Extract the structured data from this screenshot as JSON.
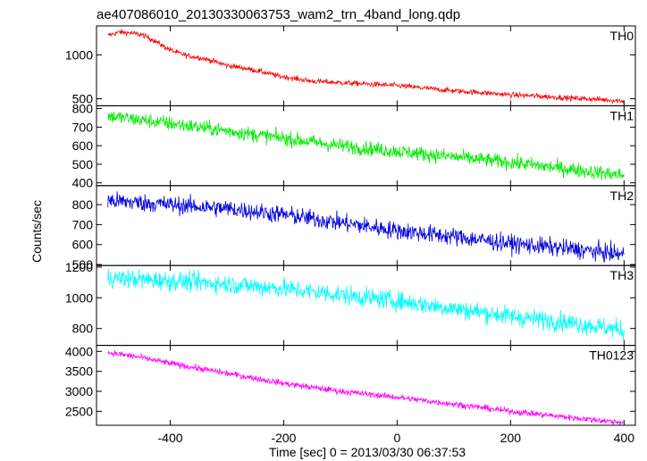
{
  "title": "ae407086010_20130330063753_wam2_trn_4band_long.qdp",
  "xlabel": "Time [sec] 0 = 2013/03/30 06:37:53",
  "ylabel": "Counts/sec",
  "chart_data": {
    "type": "line",
    "title": "ae407086010_20130330063753_wam2_trn_4band_long.qdp",
    "xlabel": "Time [sec] 0 = 2013/03/30 06:37:53",
    "ylabel": "Counts/sec",
    "xlim": [
      -530,
      420
    ],
    "xticks": [
      -400,
      -200,
      0,
      200,
      400
    ],
    "x_range": [
      -510,
      400
    ],
    "panels": [
      {
        "name": "TH0",
        "color": "#ff0000",
        "ylim": [
          420,
          1330
        ],
        "yticks": [
          500,
          1000
        ],
        "noise": 22,
        "x": [
          -510,
          -490,
          -470,
          -450,
          -430,
          -410,
          -390,
          -370,
          -350,
          -330,
          -300,
          -270,
          -240,
          -210,
          -180,
          -150,
          -120,
          -90,
          -60,
          -30,
          0,
          50,
          100,
          150,
          200,
          250,
          300,
          350,
          400
        ],
        "y": [
          1220,
          1260,
          1250,
          1230,
          1170,
          1090,
          1030,
          990,
          970,
          940,
          880,
          850,
          810,
          760,
          730,
          700,
          690,
          680,
          670,
          660,
          650,
          620,
          590,
          570,
          545,
          530,
          510,
          495,
          475
        ]
      },
      {
        "name": "TH1",
        "color": "#00ee00",
        "ylim": [
          385,
          815
        ],
        "yticks": [
          400,
          500,
          600,
          700,
          800
        ],
        "noise": 28,
        "x": [
          -510,
          -400,
          -300,
          -200,
          -100,
          0,
          100,
          200,
          300,
          400
        ],
        "y": [
          760,
          720,
          680,
          640,
          600,
          570,
          540,
          510,
          475,
          440
        ]
      },
      {
        "name": "TH2",
        "color": "#0000dd",
        "ylim": [
          495,
          895
        ],
        "yticks": [
          500,
          600,
          700,
          800
        ],
        "noise": 32,
        "x": [
          -510,
          -400,
          -300,
          -200,
          -100,
          0,
          100,
          200,
          300,
          400
        ],
        "y": [
          820,
          800,
          780,
          750,
          710,
          670,
          640,
          605,
          580,
          550
        ]
      },
      {
        "name": "TH3",
        "color": "#00ffff",
        "ylim": [
          690,
          1210
        ],
        "yticks": [
          800,
          1000,
          1200
        ],
        "noise": 45,
        "x": [
          -510,
          -400,
          -300,
          -200,
          -100,
          0,
          100,
          200,
          300,
          400
        ],
        "y": [
          1130,
          1110,
          1090,
          1060,
          1020,
          980,
          930,
          880,
          840,
          790
        ]
      },
      {
        "name": "TH0123",
        "color": "#ff00ff",
        "ylim": [
          2150,
          4150
        ],
        "yticks": [
          2500,
          3000,
          3500,
          4000
        ],
        "noise": 55,
        "x": [
          -510,
          -460,
          -400,
          -300,
          -200,
          -100,
          0,
          100,
          200,
          300,
          400
        ],
        "y": [
          3970,
          3870,
          3700,
          3450,
          3200,
          3000,
          2850,
          2680,
          2500,
          2350,
          2220
        ]
      }
    ]
  }
}
